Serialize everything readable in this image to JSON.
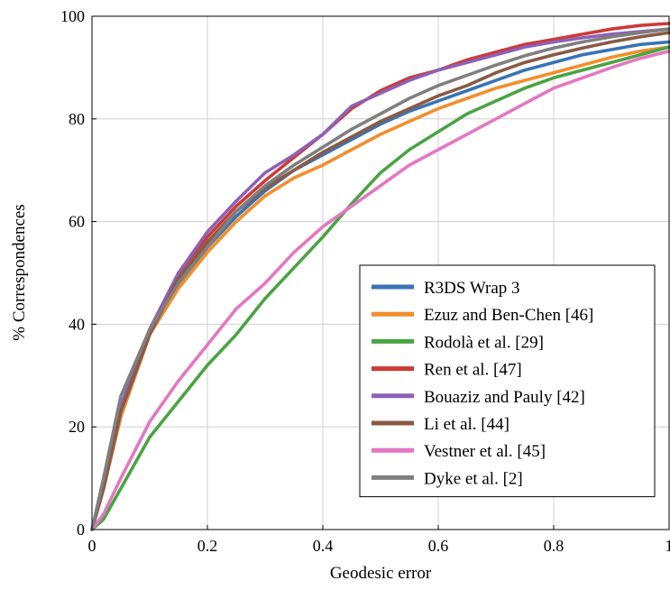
{
  "chart_data": {
    "type": "line",
    "title": "",
    "xlabel": "Geodesic error",
    "ylabel": "% Correspondences",
    "xlim": [
      0,
      1
    ],
    "ylim": [
      0,
      100
    ],
    "xticks": [
      "0",
      "0.2",
      "0.4",
      "0.6",
      "0.8",
      "1"
    ],
    "yticks": [
      "0",
      "20",
      "40",
      "60",
      "80",
      "100"
    ],
    "grid": true,
    "legend_position": "bottom-right",
    "x": [
      0,
      0.02,
      0.05,
      0.1,
      0.15,
      0.2,
      0.25,
      0.3,
      0.35,
      0.4,
      0.45,
      0.5,
      0.55,
      0.6,
      0.65,
      0.7,
      0.75,
      0.8,
      0.85,
      0.9,
      0.95,
      1.0
    ],
    "series": [
      {
        "name": "R3DS Wrap 3",
        "color": "#3874b5",
        "values": [
          0,
          8,
          22,
          38,
          48,
          55,
          61,
          66,
          70,
          73,
          76,
          79,
          81.5,
          83.5,
          85.5,
          87.5,
          89.5,
          91,
          92.5,
          93.5,
          94.5,
          95
        ]
      },
      {
        "name": "Ezuz and Ben-Chen [46]",
        "color": "#f28e2b",
        "values": [
          0,
          8,
          22,
          38,
          47,
          54,
          60,
          65,
          68.5,
          71,
          74,
          77,
          79.5,
          82,
          84,
          86,
          87.5,
          89,
          90.5,
          92,
          93.2,
          94
        ]
      },
      {
        "name": "Rodolà et al. [29]",
        "color": "#4aa343",
        "values": [
          0,
          2,
          8,
          18,
          25,
          32,
          38,
          45,
          51,
          57,
          63.5,
          69.5,
          74,
          77.5,
          81,
          83.5,
          86,
          88,
          89.5,
          91,
          92.5,
          94
        ]
      },
      {
        "name": "Ren et al. [47]",
        "color": "#cc3a35",
        "values": [
          0,
          8,
          24,
          39,
          50,
          57,
          63,
          68,
          72.5,
          77,
          82,
          85.5,
          88,
          89.5,
          91.5,
          93,
          94.5,
          95.5,
          96.5,
          97.5,
          98.2,
          98.6
        ]
      },
      {
        "name": "Bouaziz and Pauly [42]",
        "color": "#8e60b8",
        "values": [
          0,
          8,
          24,
          39,
          50,
          58,
          64,
          69.5,
          73,
          77,
          82.5,
          85,
          87.5,
          89.5,
          91,
          92.5,
          94,
          95,
          95.8,
          96.5,
          97,
          97.5
        ]
      },
      {
        "name": "Li et al. [44]",
        "color": "#8a5a45",
        "values": [
          0,
          8,
          23,
          38,
          49,
          56,
          62,
          66.5,
          70,
          73.5,
          76.5,
          79.5,
          82,
          84.5,
          86.5,
          89,
          91,
          92.5,
          93.8,
          95,
          96,
          96.8
        ]
      },
      {
        "name": "Vestner et al. [45]",
        "color": "#e377c2",
        "values": [
          0,
          3,
          10,
          21,
          29,
          36,
          43,
          48,
          54,
          59,
          63,
          67,
          71,
          74,
          77,
          80,
          83,
          86,
          88,
          90,
          91.8,
          93.2
        ]
      },
      {
        "name": "Dyke et al. [2]",
        "color": "#7f7f7f",
        "values": [
          0,
          10,
          26,
          39,
          48,
          55,
          62,
          67,
          71,
          74.5,
          78,
          81,
          84,
          86.5,
          88.5,
          90.5,
          92.3,
          93.8,
          95,
          96,
          96.8,
          97.5
        ]
      }
    ]
  }
}
